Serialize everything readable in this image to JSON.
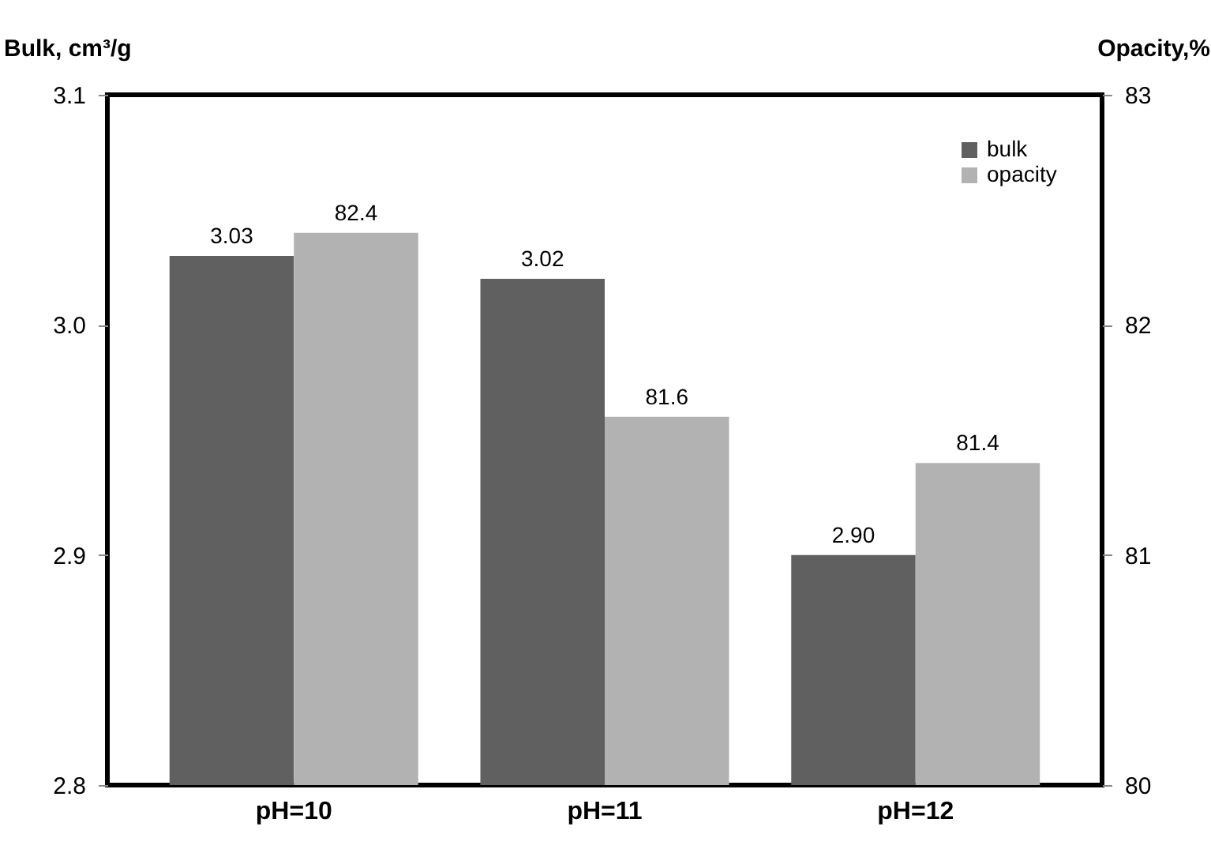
{
  "chart_data": {
    "type": "bar",
    "categories": [
      "pH=10",
      "pH=11",
      "pH=12"
    ],
    "series": [
      {
        "name": "bulk",
        "color": "#606060",
        "values": [
          3.03,
          3.02,
          2.9
        ],
        "value_labels": [
          "3.03",
          "3.02",
          "2.90"
        ]
      },
      {
        "name": "opacity",
        "color": "#b2b2b2",
        "values": [
          82.4,
          81.6,
          81.4
        ],
        "value_labels": [
          "82.4",
          "81.6",
          "81.4"
        ],
        "axis": "y2"
      }
    ],
    "ylabel": "Bulk, cm³/g",
    "y2label": "Opacity,%",
    "ylim": [
      2.8,
      3.1
    ],
    "yticks": [
      {
        "value": 2.8,
        "label": "2.8"
      },
      {
        "value": 2.9,
        "label": "2.9"
      },
      {
        "value": 3.0,
        "label": "3.0"
      },
      {
        "value": 3.1,
        "label": "3.1"
      }
    ],
    "y2lim": [
      80,
      83
    ],
    "y2ticks": [
      80,
      81,
      82,
      83
    ],
    "legend": "top right"
  }
}
